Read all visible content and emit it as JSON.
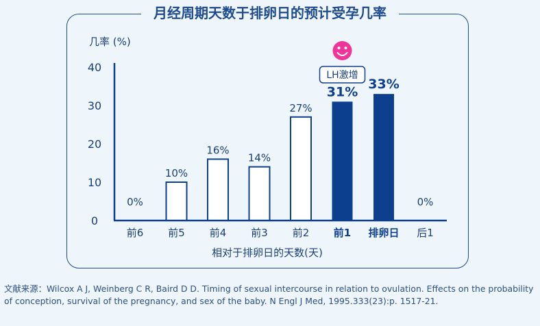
{
  "title": "月经周期天数于排卵日的预计受孕几率",
  "source": "文献来源：Wilcox A J, Weinberg C R, Baird D D. Timing of sexual intercourse in relation to ovulation. Effects on the probability of conception, survival of the pregnancy, and sex of the baby. N Engl J Med, 1995.333(23):p. 1517-21.",
  "annotation": {
    "label": "LH激增",
    "icon": "smiley-face-icon",
    "icon_color": "#f0359a"
  },
  "chart_data": {
    "type": "bar",
    "ylabel": "几率 (%)",
    "xlabel": "相对于排卵日的天数(天)",
    "ylim": [
      0,
      40
    ],
    "yticks": [
      0,
      10,
      20,
      30,
      40
    ],
    "categories": [
      "前6",
      "前5",
      "前4",
      "前3",
      "前2",
      "前1",
      "排卵日",
      "后1"
    ],
    "values": [
      0,
      10,
      16,
      14,
      27,
      31,
      33,
      0
    ],
    "data_labels": [
      "0%",
      "10%",
      "16%",
      "14%",
      "27%",
      "31%",
      "33%",
      "0%"
    ],
    "highlighted": [
      false,
      false,
      false,
      false,
      false,
      true,
      true,
      false
    ],
    "colors": {
      "accent": "#0d3f8f",
      "outline": "#0d3f8f",
      "text": "#1a3f7a"
    }
  }
}
